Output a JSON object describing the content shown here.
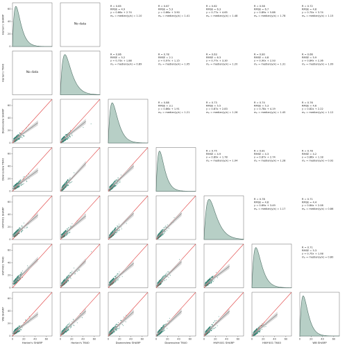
{
  "chart_data": {
    "type": "scatter-matrix",
    "variables": [
      "Harlan's SHARP",
      "Harlan's T640",
      "Downeview SHARP",
      "Downsview T640",
      "HWY401 SHARP",
      "HWY401 T640",
      "WB SHARP"
    ],
    "axis_range": [
      0,
      70
    ],
    "ticks": [
      0,
      20,
      40,
      60
    ],
    "no_data_text": "No data",
    "colors": {
      "points": "#2e7d6e",
      "density_fill": "#b7cfc6",
      "density_line": "#4f6f66",
      "one_to_one": "#e04040",
      "fit": "#777777",
      "fit_band": "#c9c9c9"
    },
    "stats": [
      {
        "row": 0,
        "col": 2,
        "lines": [
          "R = 0.85",
          "RMSE = 4.9",
          "y = 0.66x + 2.74",
          "mₚ = median(y/x) = 1.10"
        ]
      },
      {
        "row": 0,
        "col": 3,
        "lines": [
          "R = 0.67",
          "RMSE = 5.3",
          "y = 0.66x + 3.90",
          "mₚ = median(y/x) = 1.41"
        ]
      },
      {
        "row": 0,
        "col": 4,
        "lines": [
          "R = 0.62",
          "RMSE = 6.3",
          "y = 0.77x + 4.65",
          "mₚ = median(y/x) = 1.48"
        ]
      },
      {
        "row": 0,
        "col": 5,
        "lines": [
          "R = 0.58",
          "RMSE = 6.7",
          "y = 0.89x + 5.88",
          "mₚ = median(y/x) = 1.78"
        ]
      },
      {
        "row": 0,
        "col": 6,
        "lines": [
          "R = 0.72",
          "RMSE = 4.8",
          "y = 0.70x + 3.74",
          "mₚ = median(y/x) = 1.15"
        ]
      },
      {
        "row": 1,
        "col": 2,
        "lines": [
          "R = 0.86",
          "RMSE = 5.2",
          "y = 0.73x + 1.88",
          "mₚ = median(y/x) = 0.89"
        ]
      },
      {
        "row": 1,
        "col": 3,
        "lines": [
          "R = 0.78",
          "RMSE = 2.1",
          "y = 0.97x + 1.15",
          "mₚ = median(y/x) = 1.05"
        ]
      },
      {
        "row": 1,
        "col": 4,
        "lines": [
          "R = 0.63",
          "RMSE = 6.3",
          "y = 0.77x + 3.30",
          "mₚ = median(y/x) = 1.20"
        ]
      },
      {
        "row": 1,
        "col": 5,
        "lines": [
          "R = 0.80",
          "RMSE = 4.8",
          "y = 0.90x + 2.93",
          "mₚ = median(y/x) = 1.31"
        ]
      },
      {
        "row": 1,
        "col": 6,
        "lines": [
          "R = 0.66",
          "RMSE = 5.9",
          "y = 0.84x + 2.36",
          "mₚ = median(y/x) = 1.09"
        ]
      },
      {
        "row": 2,
        "col": 3,
        "lines": [
          "R = 0.88",
          "RMSE = 3.1",
          "y = 0.86x + 1.91",
          "mₚ = median(y/x) = 1.21"
        ]
      },
      {
        "row": 2,
        "col": 4,
        "lines": [
          "R = 0.73",
          "RMSE = 5.5",
          "y = 0.87x + 2.83",
          "mₚ = median(y/x) = 1.26"
        ]
      },
      {
        "row": 2,
        "col": 5,
        "lines": [
          "R = 0.74",
          "RMSE = 5.3",
          "y = 0.78x + 4.19",
          "mₚ = median(y/x) = 1.45"
        ]
      },
      {
        "row": 2,
        "col": 6,
        "lines": [
          "R = 0.76",
          "RMSE = 4.6",
          "y = 0.82x + 2.22",
          "mₚ = median(y/x) = 1.12"
        ]
      },
      {
        "row": 3,
        "col": 4,
        "lines": [
          "R = 0.75",
          "RMSE = 4.9",
          "y = 0.89x + 1.78",
          "mₚ = median(y/x) = 1.04"
        ]
      },
      {
        "row": 3,
        "col": 5,
        "lines": [
          "R = 0.81",
          "RMSE = 4.3",
          "y = 0.87x + 2.74",
          "mₚ = median(y/x) = 1.28"
        ]
      },
      {
        "row": 3,
        "col": 6,
        "lines": [
          "R = 0.78",
          "RMSE = 4.2",
          "y = 0.86x + 1.18",
          "mₚ = median(y/x) = 0.92"
        ]
      },
      {
        "row": 4,
        "col": 5,
        "lines": [
          "R = 0.78",
          "RMSE = 4.8",
          "y = 0.69x + 3.49",
          "mₚ = median(y/x) = 1.17"
        ]
      },
      {
        "row": 4,
        "col": 6,
        "lines": [
          "R = 0.71",
          "RMSE = 4.4",
          "y = 0.84x + 2.08",
          "mₚ = median(y/x) = 0.86"
        ]
      },
      {
        "row": 5,
        "col": 6,
        "lines": [
          "R = 0.71",
          "RMSE = 5.3",
          "y = 0.75x + 1.08",
          "mₚ = median(y/x) = 0.80"
        ]
      }
    ],
    "fits": [
      {
        "row": 1,
        "col": 0,
        "slope": 1.0,
        "intercept": 0.0
      },
      {
        "row": 2,
        "col": 0,
        "slope": 0.66,
        "intercept": 2.74
      },
      {
        "row": 2,
        "col": 1,
        "slope": 0.73,
        "intercept": 1.88
      },
      {
        "row": 3,
        "col": 0,
        "slope": 0.66,
        "intercept": 3.9
      },
      {
        "row": 3,
        "col": 1,
        "slope": 0.97,
        "intercept": 1.15
      },
      {
        "row": 3,
        "col": 2,
        "slope": 0.86,
        "intercept": 1.91
      },
      {
        "row": 4,
        "col": 0,
        "slope": 0.77,
        "intercept": 4.65
      },
      {
        "row": 4,
        "col": 1,
        "slope": 0.77,
        "intercept": 3.3
      },
      {
        "row": 4,
        "col": 2,
        "slope": 0.87,
        "intercept": 2.83
      },
      {
        "row": 4,
        "col": 3,
        "slope": 0.89,
        "intercept": 1.78
      },
      {
        "row": 5,
        "col": 0,
        "slope": 0.89,
        "intercept": 5.88
      },
      {
        "row": 5,
        "col": 1,
        "slope": 0.9,
        "intercept": 2.93
      },
      {
        "row": 5,
        "col": 2,
        "slope": 0.78,
        "intercept": 4.19
      },
      {
        "row": 5,
        "col": 3,
        "slope": 0.87,
        "intercept": 2.74
      },
      {
        "row": 5,
        "col": 4,
        "slope": 0.69,
        "intercept": 3.49
      },
      {
        "row": 6,
        "col": 0,
        "slope": 0.7,
        "intercept": 3.74
      },
      {
        "row": 6,
        "col": 1,
        "slope": 0.84,
        "intercept": 2.36
      },
      {
        "row": 6,
        "col": 2,
        "slope": 0.82,
        "intercept": 2.22
      },
      {
        "row": 6,
        "col": 3,
        "slope": 0.86,
        "intercept": 1.18
      },
      {
        "row": 6,
        "col": 4,
        "slope": 0.84,
        "intercept": 2.08
      },
      {
        "row": 6,
        "col": 5,
        "slope": 0.75,
        "intercept": 1.08
      }
    ],
    "no_data_cells": [
      {
        "row": 0,
        "col": 1
      },
      {
        "row": 1,
        "col": 0
      }
    ],
    "diagonal_modes": [
      6,
      8,
      7,
      6,
      9,
      7,
      6
    ]
  }
}
